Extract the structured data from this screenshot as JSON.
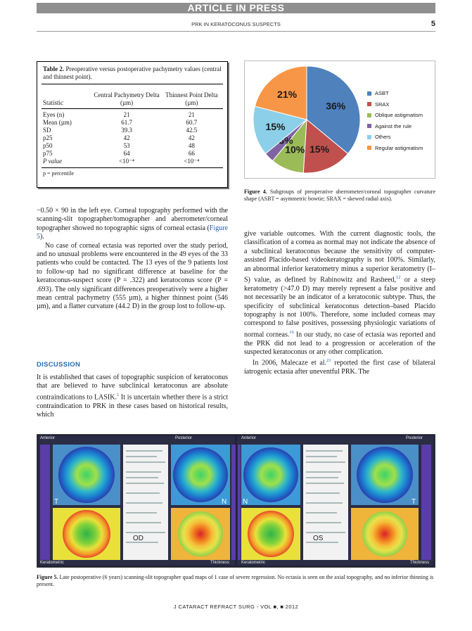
{
  "header": {
    "banner": "ARTICLE IN PRESS",
    "running_head": "PRK IN KERATOCONUS SUSPECTS",
    "page_number": "5"
  },
  "table2": {
    "label": "Table 2.",
    "title": "Preoperative versus postoperative pachymetry values (central and thinnest point).",
    "columns": [
      "Statistic",
      "Central Pachymetry Delta (µm)",
      "Thinnest Point Delta (µm)"
    ],
    "rows": [
      [
        "Eyes (n)",
        "21",
        "21"
      ],
      [
        "Mean (µm)",
        "61.7",
        "60.7"
      ],
      [
        "SD",
        "39.3",
        "42.5"
      ],
      [
        "p25",
        "42",
        "42"
      ],
      [
        "p50",
        "53",
        "48"
      ],
      [
        "p75",
        "64",
        "66"
      ],
      [
        "P value",
        "<10⁻⁴",
        "<10⁻⁴"
      ]
    ],
    "footnote": "p = percentile"
  },
  "left_column": {
    "p1": "−0.50 × 90 in the left eye. Corneal topography performed with the scanning-slit topographer/tomographer and aberrometer/corneal topographer showed no topographic signs of corneal ectasia (",
    "p1_ref": "Figure 5",
    "p1_end": ").",
    "p2": "No case of corneal ectasia was reported over the study period, and no unusual problems were encountered in the 49 eyes of the 33 patients who could be contacted. The 13 eyes of the 9 patients lost to follow-up had no significant difference at baseline for the keratoconus-suspect score (P = .322) and keratoconus score (P = .693). The only significant differences preoperatively were a higher mean central pachymetry (555 µm), a higher thinnest point (546 µm), and a flatter curvature (44.2 D) in the group lost to follow-up.",
    "discussion_heading": "DISCUSSION",
    "p3": "It is established that cases of topographic suspicion of keratoconus that are believed to have subclinical keratoconus are absolute contraindications to LASIK.",
    "p3_sup": "1",
    "p3_end": " It is uncertain whether there is a strict contraindication to PRK in these cases based on historical results, which"
  },
  "right_column": {
    "p1": "give variable outcomes. With the current diagnostic tools, the classification of a cornea as normal may not indicate the absence of a subclinical keratoconus because the sensitivity of computer-assisted Placido-based videokeratography is not 100%. Similarly, an abnormal inferior keratometry minus a superior keratometry (I–S) value, as defined by Rabinowitz and Rasheed,",
    "p1_sup": "12",
    "p1_mid": " or a steep keratometry (>47.0 D) may merely represent a false positive and not necessarily be an indicator of a keratoconic subtype. Thus, the specificity of subclinical keratoconus detection–based Placido topography is not 100%. Therefore, some included corneas may correspond to false positives, possessing physiologic variations of normal corneas.",
    "p1_sup2": "16",
    "p1_end": " In our study, no case of ectasia was reported and the PRK did not lead to a progression or acceleration of the suspected keratoconus or any other complication.",
    "p2": "In 2006, Malecaze et al.",
    "p2_sup": "21",
    "p2_end": " reported the first case of bilateral iatrogenic ectasia after uneventful PRK. The"
  },
  "figure4": {
    "caption_label": "Figure 4.",
    "caption": "Subgroups of preoperative aberrometer/corneal topographer curvature shape (ASBT = asymmetric bowtie; SRAX = skewed radial axis)."
  },
  "chart_data": {
    "type": "pie",
    "categories": [
      "ASBT",
      "SRAX",
      "Oblique astigmatism",
      "Against the rule",
      "Others",
      "Regular astigmatism"
    ],
    "values": [
      36,
      15,
      10,
      3,
      15,
      21
    ],
    "labels": [
      "36%",
      "15%",
      "10%",
      "3%",
      "15%",
      "21%"
    ],
    "colors": [
      "#4f81bd",
      "#c0504d",
      "#9bbb59",
      "#8064a2",
      "#8ccfe8",
      "#f79646"
    ],
    "legend_placement": "right",
    "title": ""
  },
  "figure5": {
    "caption_label": "Figure 5.",
    "caption": "Late postoperative (6 years) scanning-slit topographer quad maps of 1 case of severe regression. No ectasia is seen on the axial topography, and no inferior thinning is present.",
    "panel_left_label": "OD",
    "panel_right_label": "OS",
    "left_top_label": "Anterior",
    "left_mid_label": "Posterior",
    "right_top_label": "Anterior",
    "right_mid_label": "Posterior",
    "bottom_label_left": "Keratometric",
    "bottom_label_mid": "Thickness",
    "bottom_label_right": "Keratometric",
    "bottom_label_far": "Thickness",
    "letters": [
      "T",
      "N",
      "N",
      "T"
    ]
  },
  "footer": {
    "journal": "J CATARACT REFRACT SURG - VOL ■, ■ 2012"
  }
}
